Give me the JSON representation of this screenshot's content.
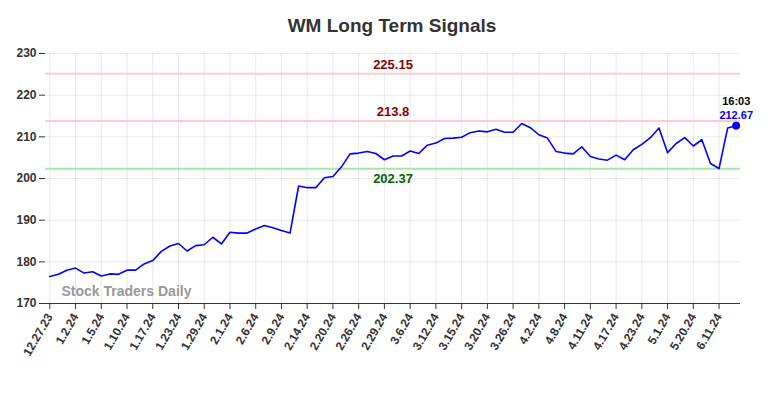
{
  "chart_data": {
    "type": "line",
    "title": "WM Long Term Signals",
    "categories": [
      "12.27.23",
      null,
      null,
      "1.2.24",
      null,
      null,
      "1.5.24",
      null,
      null,
      "1.10.24",
      null,
      null,
      "1.17.24",
      null,
      null,
      "1.23.24",
      null,
      null,
      "1.29.24",
      null,
      null,
      "2.1.24",
      null,
      null,
      "2.6.24",
      null,
      null,
      "2.9.24",
      null,
      null,
      "2.14.24",
      null,
      null,
      "2.20.24",
      null,
      null,
      "2.26.24",
      null,
      null,
      "2.29.24",
      null,
      null,
      "3.6.24",
      null,
      null,
      "3.12.24",
      null,
      null,
      "3.15.24",
      null,
      null,
      "3.20.24",
      null,
      null,
      "3.26.24",
      null,
      null,
      "4.2.24",
      null,
      null,
      "4.8.24",
      null,
      null,
      "4.11.24",
      null,
      null,
      "4.17.24",
      null,
      null,
      "4.23.24",
      null,
      null,
      "5.1.24",
      null,
      null,
      "5.20.24",
      null,
      null,
      "6.11.24",
      null,
      null
    ],
    "values": [
      176.5,
      177,
      178,
      178.5,
      177.3,
      177.6,
      176.6,
      177.1,
      177,
      178,
      178,
      179.5,
      180.3,
      182.5,
      183.8,
      184.4,
      182.6,
      183.9,
      184.1,
      185.9,
      184.3,
      187.1,
      186.9,
      186.9,
      187.9,
      188.7,
      188.2,
      187.5,
      186.9,
      198.2,
      197.8,
      197.8,
      200.2,
      200.5,
      202.8,
      205.9,
      206.1,
      206.5,
      206,
      204.5,
      205.4,
      205.4,
      206.6,
      206,
      208,
      208.5,
      209.6,
      209.7,
      209.9,
      211,
      211.4,
      211.2,
      211.8,
      211.1,
      211.1,
      213.2,
      212.2,
      210.5,
      209.7,
      206.5,
      206.1,
      205.9,
      207.6,
      205.3,
      204.7,
      204.4,
      205.6,
      204.5,
      206.9,
      208.2,
      209.8,
      212.1,
      206.2,
      208.4,
      209.8,
      207.8,
      209.3,
      203.6,
      202.4,
      212.1,
      212.67
    ],
    "color": "#0000ff",
    "ylim": [
      170,
      230
    ],
    "yticks": [
      170,
      180,
      190,
      200,
      210,
      220,
      230
    ],
    "grid": true,
    "annotations": [
      {
        "y": 225.15,
        "color": "#ffcccc",
        "text_color": "#8b0000"
      },
      {
        "y": 213.8,
        "color": "#ffcccc",
        "text_color": "#8b0000"
      },
      {
        "y": 202.37,
        "color": "#a6e6a6",
        "text_color": "#006400"
      }
    ],
    "end_annotation": {
      "text": "16:03"
    },
    "watermark": "Stock Traders Daily"
  }
}
